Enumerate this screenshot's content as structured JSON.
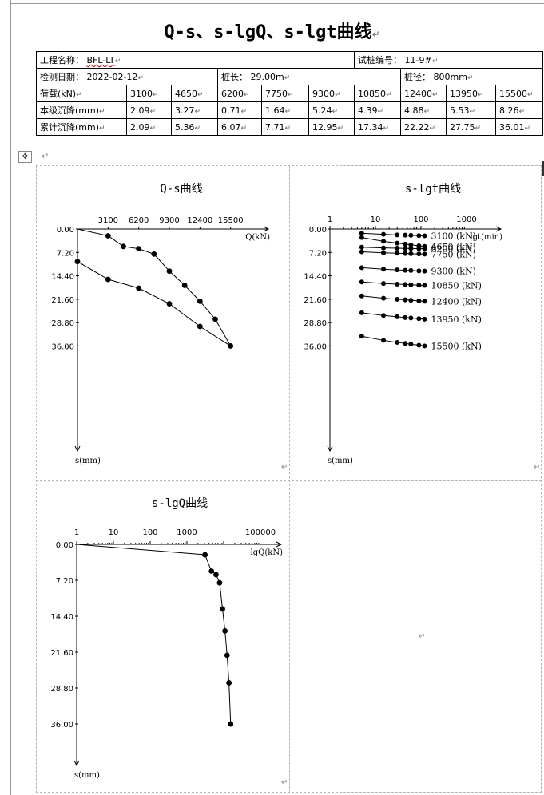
{
  "title": "Q-s、s-lgQ、s-lgt曲线",
  "info": {
    "project_label": "工程名称：",
    "project_value": "BFL-LT",
    "pile_no_label": "试桩编号：",
    "pile_no_value": "11-9#",
    "date_label": "检测日期：",
    "date_value": "2022-02-12",
    "length_label": "桩长：",
    "length_value": "29.00m",
    "diameter_label": "桩径：",
    "diameter_value": "800mm"
  },
  "load_table": {
    "row_labels": [
      "荷载(kN)",
      "本级沉降(mm)",
      "累计沉降(mm)"
    ],
    "loads": [
      "3100",
      "4650",
      "6200",
      "7750",
      "9300",
      "10850",
      "12400",
      "13950",
      "15500"
    ],
    "step_settlement": [
      "2.09",
      "3.27",
      "0.71",
      "1.64",
      "5.24",
      "4.39",
      "4.88",
      "5.53",
      "8.26"
    ],
    "cum_settlement": [
      "2.09",
      "5.36",
      "6.07",
      "7.71",
      "12.95",
      "17.34",
      "22.22",
      "27.75",
      "36.01"
    ]
  },
  "chart_data": [
    {
      "type": "line",
      "title": "Q-s曲线",
      "xlabel": "Q(kN)",
      "ylabel": "s(mm)",
      "x_ticks": [
        "3100",
        "6200",
        "9300",
        "12400",
        "15500"
      ],
      "y_ticks": [
        "0.00",
        "7.20",
        "14.40",
        "21.60",
        "28.80",
        "36.00"
      ],
      "xlim": [
        0,
        18600
      ],
      "ylim": [
        0,
        43.2
      ],
      "loading": {
        "x": [
          0,
          3100,
          4650,
          6200,
          7750,
          9300,
          10850,
          12400,
          13950,
          15500
        ],
        "y": [
          0,
          2.09,
          5.36,
          6.07,
          7.71,
          12.95,
          17.34,
          22.22,
          27.75,
          36.01
        ]
      },
      "unloading": {
        "x": [
          15500,
          12400,
          9300,
          6200,
          3100,
          0
        ],
        "y": [
          36.01,
          30.0,
          23.0,
          18.2,
          15.5,
          10.0
        ]
      }
    },
    {
      "type": "line",
      "title": "s-lgt曲线",
      "xlabel": "lgt(min)",
      "ylabel": "s(mm)",
      "x_ticks": [
        "1",
        "10",
        "100",
        "1000"
      ],
      "y_ticks": [
        "0.00",
        "7.20",
        "14.40",
        "21.60",
        "28.80",
        "36.00"
      ],
      "ylim": [
        0,
        43.2
      ],
      "t": [
        5,
        15,
        30,
        45,
        60,
        90,
        120
      ],
      "series": [
        {
          "name": "3100 (kN)",
          "s0": 1.3,
          "s1": 2.09
        },
        {
          "name": "4650 (kN)",
          "s0": 2.6,
          "s1": 5.36
        },
        {
          "name": "6200 (kN)",
          "s0": 5.6,
          "s1": 6.07
        },
        {
          "name": "7750 (kN)",
          "s0": 7.0,
          "s1": 7.71
        },
        {
          "name": "9300 (kN)",
          "s0": 11.9,
          "s1": 12.95
        },
        {
          "name": "10850 (kN)",
          "s0": 16.3,
          "s1": 17.34
        },
        {
          "name": "12400 (kN)",
          "s0": 20.6,
          "s1": 22.22
        },
        {
          "name": "13950 (kN)",
          "s0": 25.8,
          "s1": 27.75
        },
        {
          "name": "15500 (kN)",
          "s0": 33.0,
          "s1": 36.01
        }
      ]
    },
    {
      "type": "line",
      "title": "s-lgQ曲线",
      "xlabel": "lgQ(kN)",
      "ylabel": "s(mm)",
      "x_ticks": [
        "1",
        "10",
        "100",
        "1000",
        "100000"
      ],
      "y_ticks": [
        "0.00",
        "7.20",
        "14.40",
        "21.60",
        "28.80",
        "36.00"
      ],
      "ylim": [
        0,
        43.2
      ],
      "x": [
        1,
        3100,
        4650,
        6200,
        7750,
        9300,
        10850,
        12400,
        13950,
        15500
      ],
      "y": [
        0,
        2.09,
        5.36,
        6.07,
        7.71,
        12.95,
        17.34,
        22.22,
        27.75,
        36.01
      ]
    }
  ]
}
